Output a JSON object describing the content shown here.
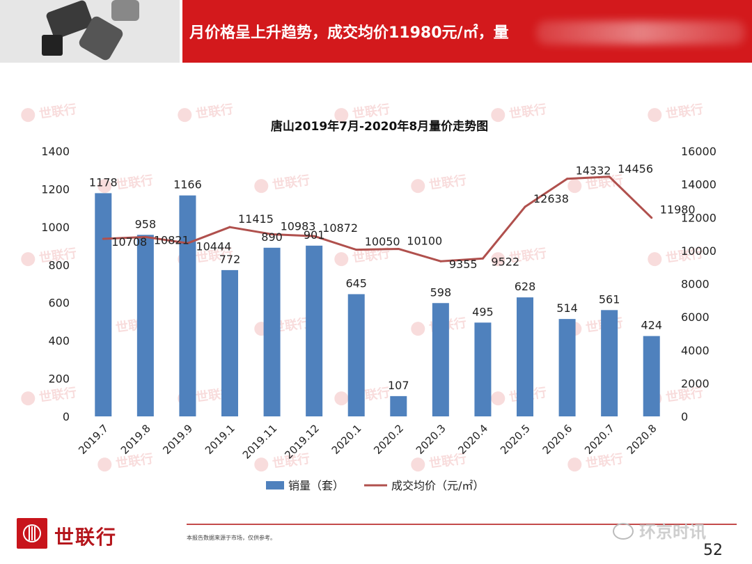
{
  "header": {
    "title": "月价格呈上升趋势，成交均价11980元/㎡，量"
  },
  "watermark": {
    "text": "世联行",
    "color": "#d93c3c"
  },
  "footer": {
    "brand": "世联行",
    "note": "本报告数据来源于市场，仅供参考。",
    "wechat": "环京时讯",
    "page_number": "52",
    "brand_color": "#c8141b"
  },
  "chart_data": {
    "type": "bar",
    "title": "唐山2019年7月-2020年8月量价走势图",
    "categories": [
      "2019.7",
      "2019.8",
      "2019.9",
      "2019.1",
      "2019.11",
      "2019.12",
      "2020.1",
      "2020.2",
      "2020.3",
      "2020.4",
      "2020.5",
      "2020.6",
      "2020.7",
      "2020.8"
    ],
    "series": [
      {
        "name": "销量（套）",
        "kind": "bar",
        "axis": "left",
        "color": "#4f81bd",
        "values": [
          1178,
          958,
          1166,
          772,
          890,
          901,
          645,
          107,
          598,
          495,
          628,
          514,
          561,
          424
        ]
      },
      {
        "name": "成交均价（元/㎡）",
        "kind": "line",
        "axis": "right",
        "color": "#b0504d",
        "values": [
          10708,
          10821,
          10444,
          11415,
          10983,
          10872,
          10050,
          10100,
          9355,
          9522,
          12638,
          14332,
          14456,
          11980
        ]
      }
    ],
    "y_left": {
      "min": 0,
      "max": 1400,
      "ticks": [
        0,
        200,
        400,
        600,
        800,
        1000,
        1200,
        1400
      ]
    },
    "y_right": {
      "min": 0,
      "max": 16000,
      "ticks": [
        0,
        2000,
        4000,
        6000,
        8000,
        10000,
        12000,
        14000,
        16000
      ]
    },
    "grid": false,
    "legend_position": "bottom"
  }
}
